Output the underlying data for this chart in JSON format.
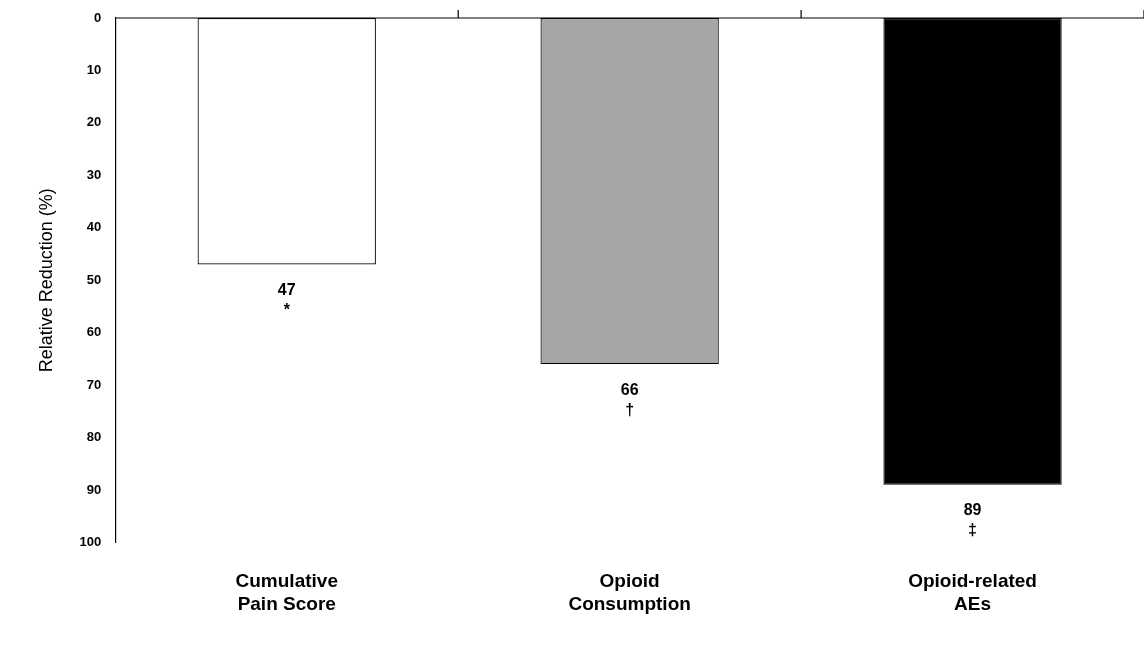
{
  "chart_data": {
    "type": "bar",
    "ylabel": "Relative Reduction (%)",
    "categories": [
      "Cumulative Pain Score",
      "Opioid Consumption",
      "Opioid-related AEs"
    ],
    "values": [
      47,
      66,
      89
    ],
    "colors": [
      "#ffffff",
      "#a6a6a6",
      "#000000"
    ],
    "ylim": [
      100,
      0
    ],
    "yticks": [
      0,
      10,
      20,
      30,
      40,
      50,
      60,
      70,
      80,
      90,
      100
    ],
    "grid": false,
    "legend": false,
    "data_labels": true,
    "annotations": [
      {
        "text": "*",
        "x": "Cumulative Pain Score",
        "y": 47
      },
      {
        "text": "†",
        "x": "Opioid Consumption",
        "y": 66
      },
      {
        "text": "‡",
        "x": "Opioid-related AEs",
        "y": 89
      }
    ]
  }
}
